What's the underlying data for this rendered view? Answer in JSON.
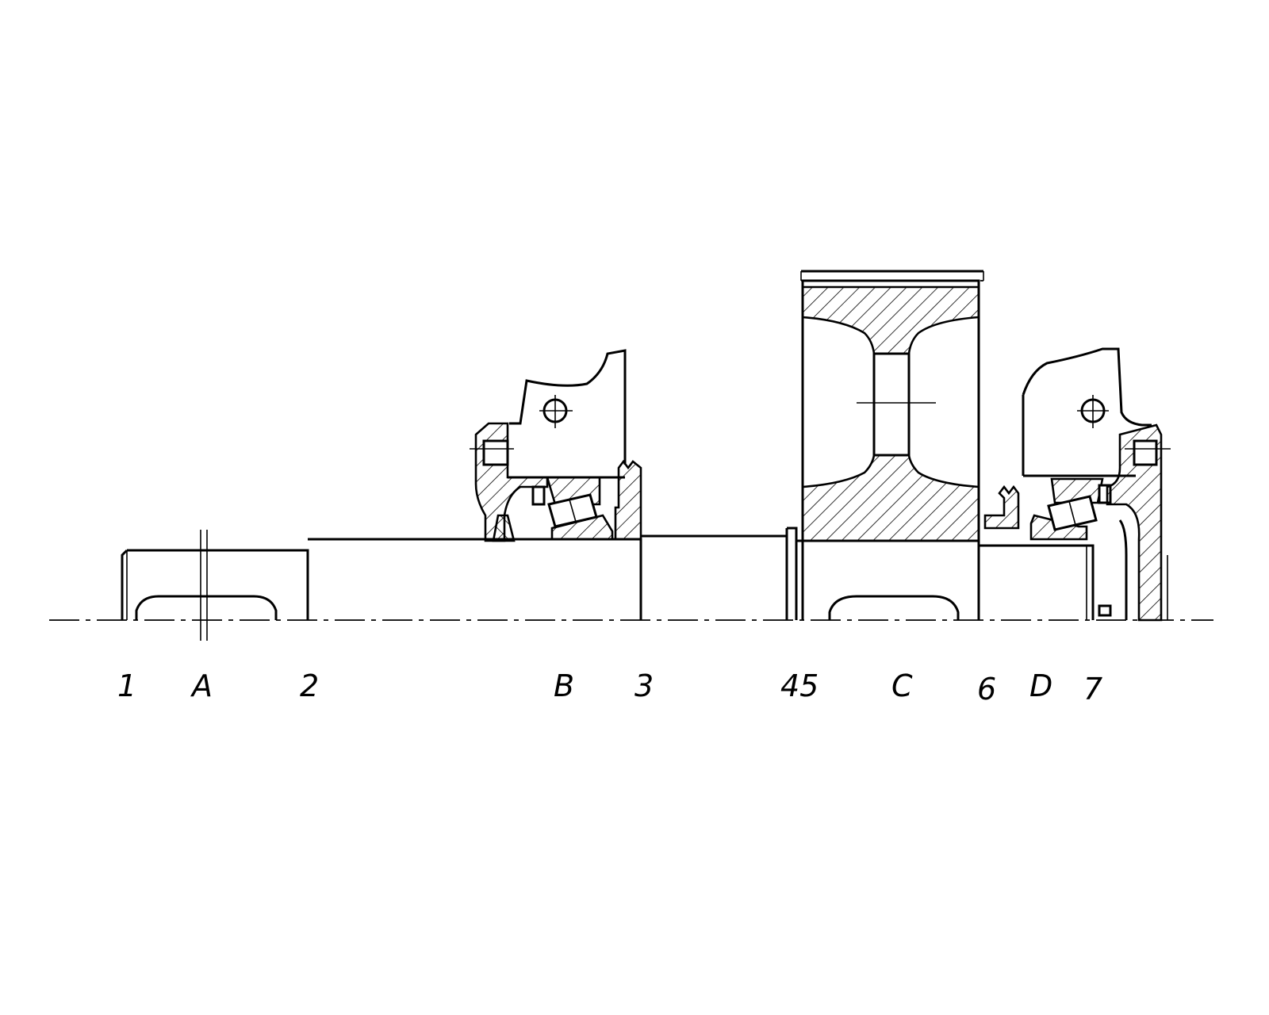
{
  "labels": {
    "s1": "1",
    "sA": "A",
    "s2": "2",
    "sB": "B",
    "s3": "3",
    "s45": "45",
    "sC": "C",
    "s6": "6",
    "sD": "D",
    "s7": "7"
  },
  "colors": {
    "line": "#000000",
    "background": "#ffffff"
  }
}
